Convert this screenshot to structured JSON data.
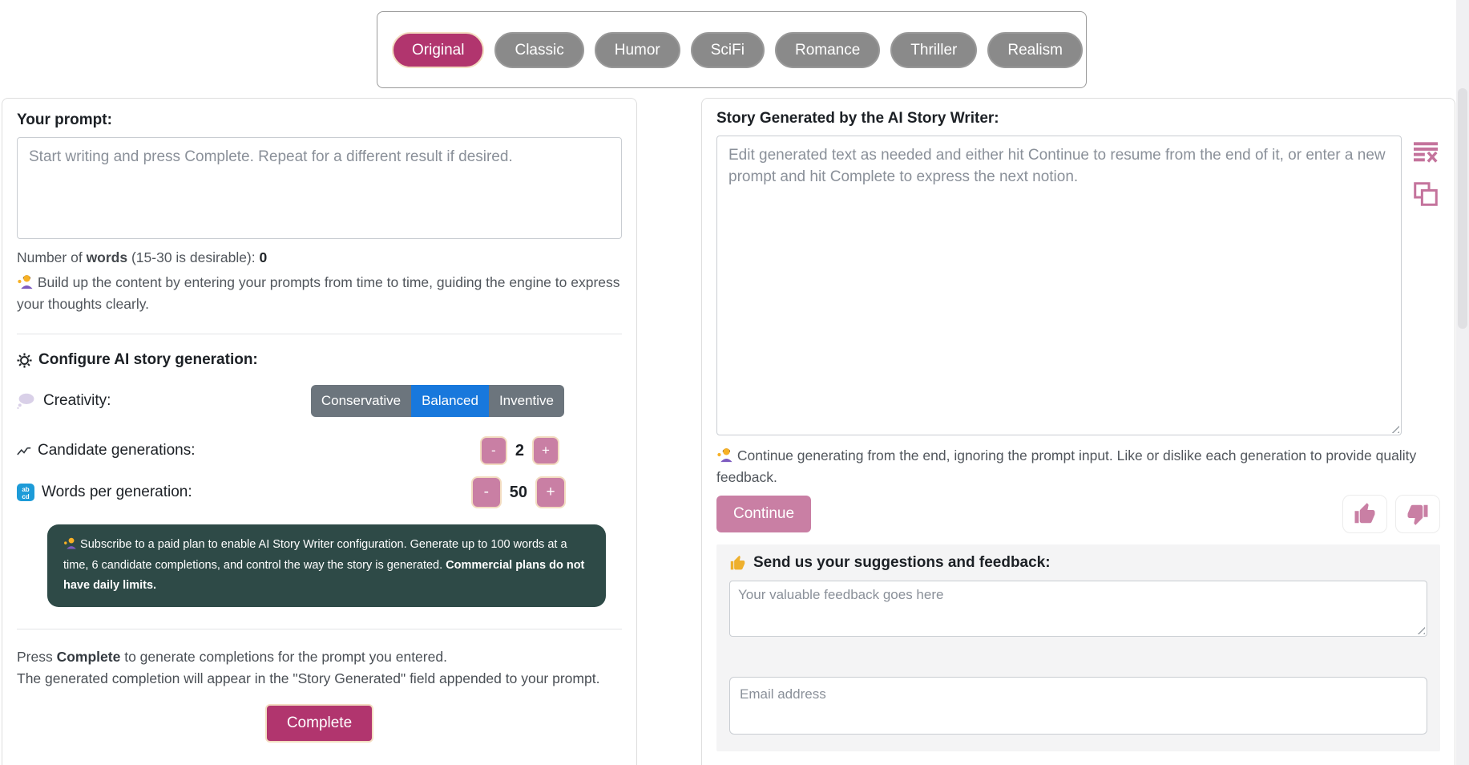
{
  "genres": {
    "items": [
      {
        "label": "Original",
        "active": true
      },
      {
        "label": "Classic",
        "active": false
      },
      {
        "label": "Humor",
        "active": false
      },
      {
        "label": "SciFi",
        "active": false
      },
      {
        "label": "Romance",
        "active": false
      },
      {
        "label": "Thriller",
        "active": false
      },
      {
        "label": "Realism",
        "active": false
      }
    ]
  },
  "prompt_panel": {
    "title": "Your prompt:",
    "textarea_placeholder": "Start writing and press Complete. Repeat for a different result if desired.",
    "word_count": {
      "prefix": "Number of ",
      "bold": "words",
      "mid": " (15-30 is desirable): ",
      "value": "0"
    },
    "tip": " Build up the content by entering your prompts from time to time, guiding the engine to express your thoughts clearly.",
    "configure": {
      "heading": "Configure AI story generation:",
      "creativity_label": "Creativity:",
      "creativity_options": [
        "Conservative",
        "Balanced",
        "Inventive"
      ],
      "creativity_selected": "Balanced",
      "candidates_label": "Candidate generations:",
      "candidates_value": "2",
      "words_label": "Words per generation:",
      "words_value": "50",
      "minus_label": "-",
      "plus_label": "+",
      "upsell_text": " Subscribe to a paid plan to enable AI Story Writer configuration. Generate up to 100 words at a time, 6 candidate completions, and control the way the story is generated. ",
      "upsell_bold": "Commercial plans do not have daily limits."
    },
    "press_prefix": "Press ",
    "press_bold": "Complete",
    "press_suffix": " to generate completions for the prompt you entered.",
    "appear_line": "The generated completion will appear in the \"Story Generated\" field appended to your prompt.",
    "complete_button": "Complete"
  },
  "story_panel": {
    "title": "Story Generated by the AI Story Writer:",
    "textarea_placeholder": "Edit generated text as needed and either hit Continue to resume from the end of it, or enter a new prompt and hit Complete to express the next notion.",
    "tip": " Continue generating from the end, ignoring the prompt input. Like or dislike each generation to provide quality feedback.",
    "continue_button": "Continue",
    "icons": {
      "clear": "clear-text-icon",
      "copy": "copy-icon",
      "like": "thumbs-up-icon",
      "dislike": "thumbs-down-icon"
    }
  },
  "feedback": {
    "heading": " Send us your suggestions and feedback:",
    "feedback_placeholder": "Your valuable feedback goes here",
    "email_placeholder": "Email address"
  },
  "colors": {
    "accent_magenta": "#b1356e",
    "accent_pink": "#c97fa4",
    "selected_blue": "#1878dc",
    "dark_box_bg": "#2e4a47",
    "inactive_gray": "#8a8a8a",
    "segment_gray": "#6c757d",
    "icon_pink": "#c4739c",
    "feedback_bg": "#f4f4f5"
  }
}
